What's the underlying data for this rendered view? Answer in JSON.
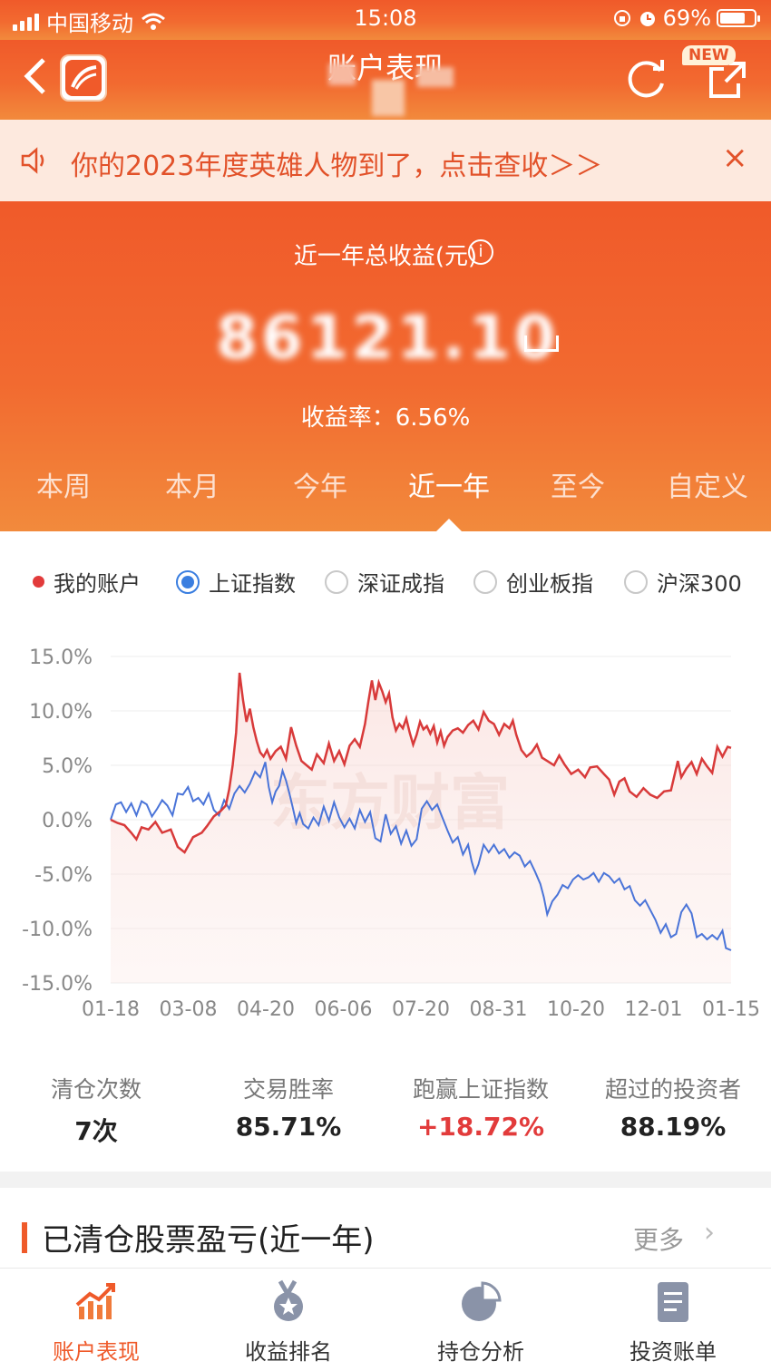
{
  "status_bar": {
    "carrier": "中国移动",
    "time": "15:08",
    "battery": "69%"
  },
  "nav": {
    "title": "账户表现",
    "new_badge": "NEW"
  },
  "notice": {
    "text": "你的2023年度英雄人物到了，点击查收＞＞",
    "close": "×"
  },
  "summary": {
    "label": "近一年总收益(元)",
    "value": "86121.10",
    "yield_label": "收益率：",
    "yield_value": "6.56%"
  },
  "tabs": [
    {
      "label": "本周",
      "active": false
    },
    {
      "label": "本月",
      "active": false
    },
    {
      "label": "今年",
      "active": false
    },
    {
      "label": "近一年",
      "active": true
    },
    {
      "label": "至今",
      "active": false
    },
    {
      "label": "自定义",
      "active": false
    }
  ],
  "legend": {
    "my_account": "我的账户",
    "options": [
      {
        "label": "上证指数",
        "selected": true
      },
      {
        "label": "深证成指",
        "selected": false
      },
      {
        "label": "创业板指",
        "selected": false
      },
      {
        "label": "沪深300",
        "selected": false
      }
    ]
  },
  "chart_data": {
    "type": "line",
    "ylim": [
      -15,
      15
    ],
    "y_ticks": [
      "15.0%",
      "10.0%",
      "5.0%",
      "0.0%",
      "-5.0%",
      "-10.0%",
      "-15.0%"
    ],
    "x_ticks": [
      "01-18",
      "03-08",
      "04-20",
      "06-06",
      "07-20",
      "08-31",
      "10-20",
      "12-01",
      "01-15"
    ],
    "watermark": "东方财富",
    "colors": {
      "account": "#d83a3a",
      "index": "#4a74d8"
    },
    "series": [
      {
        "name": "我的账户",
        "points": [
          [
            0,
            0
          ],
          [
            0.4,
            -0.3
          ],
          [
            0.8,
            -0.5
          ],
          [
            1.2,
            -1.2
          ],
          [
            1.5,
            -1.8
          ],
          [
            1.8,
            -0.7
          ],
          [
            2.2,
            -0.9
          ],
          [
            2.6,
            -0.2
          ],
          [
            3.0,
            -1.2
          ],
          [
            3.5,
            -0.9
          ],
          [
            3.9,
            -2.5
          ],
          [
            4.3,
            -3.0
          ],
          [
            4.8,
            -1.6
          ],
          [
            5.3,
            -1.2
          ],
          [
            5.6,
            -0.6
          ],
          [
            6.0,
            0.3
          ],
          [
            6.4,
            0.8
          ],
          [
            6.7,
            1.3
          ],
          [
            6.9,
            2.8
          ],
          [
            7.1,
            5.0
          ],
          [
            7.3,
            8.0
          ],
          [
            7.5,
            13.5
          ],
          [
            7.7,
            11.0
          ],
          [
            7.9,
            9.0
          ],
          [
            8.1,
            10.2
          ],
          [
            8.3,
            8.5
          ],
          [
            8.5,
            7.2
          ],
          [
            8.7,
            6.2
          ],
          [
            8.9,
            5.8
          ],
          [
            9.1,
            6.4
          ],
          [
            9.3,
            5.6
          ],
          [
            9.6,
            6.3
          ],
          [
            9.9,
            6.7
          ],
          [
            10.2,
            5.6
          ],
          [
            10.5,
            8.5
          ],
          [
            10.8,
            6.8
          ],
          [
            11.1,
            5.4
          ],
          [
            11.4,
            5.0
          ],
          [
            11.7,
            4.6
          ],
          [
            12.0,
            6.0
          ],
          [
            12.4,
            5.2
          ],
          [
            12.7,
            7.0
          ],
          [
            13.0,
            5.4
          ],
          [
            13.3,
            6.3
          ],
          [
            13.6,
            5.1
          ],
          [
            13.9,
            6.8
          ],
          [
            14.2,
            7.4
          ],
          [
            14.5,
            6.7
          ],
          [
            14.8,
            8.8
          ],
          [
            15.0,
            10.9
          ],
          [
            15.2,
            12.8
          ],
          [
            15.4,
            11.0
          ],
          [
            15.6,
            12.6
          ],
          [
            15.8,
            11.8
          ],
          [
            16.0,
            10.8
          ],
          [
            16.2,
            11.6
          ],
          [
            16.4,
            9.4
          ],
          [
            16.6,
            8.2
          ],
          [
            16.8,
            8.8
          ],
          [
            17.0,
            8.4
          ],
          [
            17.2,
            9.3
          ],
          [
            17.4,
            8.0
          ],
          [
            17.6,
            6.9
          ],
          [
            17.8,
            7.8
          ],
          [
            18.0,
            9.0
          ],
          [
            18.2,
            8.3
          ],
          [
            18.4,
            8.6
          ],
          [
            18.6,
            7.9
          ],
          [
            18.8,
            8.6
          ],
          [
            19.0,
            7.1
          ],
          [
            19.2,
            8.1
          ],
          [
            19.4,
            6.8
          ],
          [
            19.6,
            7.6
          ],
          [
            19.9,
            8.2
          ],
          [
            20.2,
            8.4
          ],
          [
            20.5,
            8.0
          ],
          [
            20.8,
            8.7
          ],
          [
            21.1,
            9.1
          ],
          [
            21.4,
            8.3
          ],
          [
            21.7,
            9.9
          ],
          [
            22.0,
            9.1
          ],
          [
            22.3,
            8.8
          ],
          [
            22.6,
            7.8
          ],
          [
            22.9,
            8.8
          ],
          [
            23.2,
            8.4
          ],
          [
            23.4,
            9.1
          ],
          [
            23.6,
            7.8
          ],
          [
            23.9,
            6.4
          ],
          [
            24.2,
            5.8
          ],
          [
            24.5,
            6.2
          ],
          [
            24.8,
            6.9
          ],
          [
            25.1,
            5.7
          ],
          [
            25.4,
            5.4
          ],
          [
            25.8,
            5.0
          ],
          [
            26.1,
            5.9
          ],
          [
            26.4,
            5.1
          ],
          [
            26.8,
            4.2
          ],
          [
            27.2,
            4.6
          ],
          [
            27.6,
            3.9
          ],
          [
            27.9,
            4.8
          ],
          [
            28.3,
            4.9
          ],
          [
            28.7,
            4.2
          ],
          [
            29.0,
            3.7
          ],
          [
            29.3,
            2.3
          ],
          [
            29.6,
            3.5
          ],
          [
            29.9,
            3.8
          ],
          [
            30.2,
            2.6
          ],
          [
            30.6,
            2.1
          ],
          [
            31.0,
            2.9
          ],
          [
            31.4,
            2.3
          ],
          [
            31.8,
            2.0
          ],
          [
            32.2,
            2.6
          ],
          [
            32.6,
            2.7
          ],
          [
            33.0,
            5.4
          ],
          [
            33.2,
            3.9
          ],
          [
            33.5,
            4.7
          ],
          [
            33.8,
            5.3
          ],
          [
            34.1,
            4.2
          ],
          [
            34.4,
            5.6
          ],
          [
            34.7,
            4.9
          ],
          [
            35.0,
            4.3
          ],
          [
            35.3,
            6.7
          ],
          [
            35.6,
            5.8
          ],
          [
            35.9,
            6.7
          ],
          [
            36.1,
            6.6
          ]
        ]
      },
      {
        "name": "上证指数",
        "points": [
          [
            0,
            0
          ],
          [
            0.3,
            1.4
          ],
          [
            0.6,
            1.6
          ],
          [
            0.9,
            0.7
          ],
          [
            1.2,
            1.5
          ],
          [
            1.5,
            0.4
          ],
          [
            1.8,
            1.7
          ],
          [
            2.1,
            1.4
          ],
          [
            2.4,
            0.3
          ],
          [
            2.7,
            1.0
          ],
          [
            3.0,
            1.8
          ],
          [
            3.3,
            1.3
          ],
          [
            3.6,
            0.4
          ],
          [
            3.9,
            2.4
          ],
          [
            4.2,
            2.3
          ],
          [
            4.5,
            3.0
          ],
          [
            4.8,
            1.7
          ],
          [
            5.1,
            2.0
          ],
          [
            5.4,
            1.4
          ],
          [
            5.7,
            2.4
          ],
          [
            6.0,
            0.9
          ],
          [
            6.3,
            0.4
          ],
          [
            6.6,
            1.8
          ],
          [
            6.9,
            1.0
          ],
          [
            7.2,
            2.4
          ],
          [
            7.5,
            3.1
          ],
          [
            7.8,
            2.5
          ],
          [
            8.1,
            3.3
          ],
          [
            8.4,
            4.4
          ],
          [
            8.7,
            3.9
          ],
          [
            9.0,
            5.3
          ],
          [
            9.2,
            3.0
          ],
          [
            9.4,
            1.6
          ],
          [
            9.6,
            2.6
          ],
          [
            9.8,
            3.1
          ],
          [
            10.0,
            4.5
          ],
          [
            10.2,
            3.6
          ],
          [
            10.4,
            2.4
          ],
          [
            10.6,
            1.1
          ],
          [
            10.8,
            -0.3
          ],
          [
            11.0,
            0.6
          ],
          [
            11.2,
            -0.4
          ],
          [
            11.5,
            -0.8
          ],
          [
            11.8,
            0.2
          ],
          [
            12.1,
            -0.5
          ],
          [
            12.4,
            1.2
          ],
          [
            12.7,
            -0.1
          ],
          [
            13.0,
            1.6
          ],
          [
            13.3,
            0.2
          ],
          [
            13.6,
            -0.7
          ],
          [
            13.9,
            0.1
          ],
          [
            14.2,
            -0.8
          ],
          [
            14.5,
            0.9
          ],
          [
            14.8,
            -0.2
          ],
          [
            15.1,
            0.7
          ],
          [
            15.4,
            -1.7
          ],
          [
            15.7,
            -2.0
          ],
          [
            16.0,
            0.5
          ],
          [
            16.3,
            -1.3
          ],
          [
            16.6,
            -0.6
          ],
          [
            16.9,
            -2.2
          ],
          [
            17.2,
            -1.0
          ],
          [
            17.5,
            -2.4
          ],
          [
            17.8,
            -1.8
          ],
          [
            18.1,
            1.0
          ],
          [
            18.4,
            1.7
          ],
          [
            18.7,
            0.9
          ],
          [
            19.0,
            1.4
          ],
          [
            19.3,
            0.2
          ],
          [
            19.6,
            -1.0
          ],
          [
            19.9,
            -2.1
          ],
          [
            20.2,
            -1.6
          ],
          [
            20.5,
            -3.2
          ],
          [
            20.8,
            -2.3
          ],
          [
            21.0,
            -3.8
          ],
          [
            21.2,
            -4.9
          ],
          [
            21.4,
            -4.1
          ],
          [
            21.7,
            -2.3
          ],
          [
            22.0,
            -3.0
          ],
          [
            22.3,
            -2.3
          ],
          [
            22.6,
            -3.1
          ],
          [
            22.9,
            -2.7
          ],
          [
            23.2,
            -3.5
          ],
          [
            23.5,
            -3.0
          ],
          [
            23.8,
            -3.3
          ],
          [
            24.1,
            -4.3
          ],
          [
            24.4,
            -3.8
          ],
          [
            24.7,
            -4.8
          ],
          [
            25.0,
            -5.9
          ],
          [
            25.2,
            -7.1
          ],
          [
            25.4,
            -8.7
          ],
          [
            25.7,
            -7.5
          ],
          [
            26.0,
            -6.9
          ],
          [
            26.3,
            -6.0
          ],
          [
            26.6,
            -6.3
          ],
          [
            26.9,
            -5.5
          ],
          [
            27.2,
            -5.1
          ],
          [
            27.5,
            -5.5
          ],
          [
            27.8,
            -5.3
          ],
          [
            28.1,
            -4.9
          ],
          [
            28.4,
            -5.7
          ],
          [
            28.7,
            -4.9
          ],
          [
            29.0,
            -5.2
          ],
          [
            29.3,
            -5.8
          ],
          [
            29.6,
            -5.4
          ],
          [
            29.9,
            -6.4
          ],
          [
            30.2,
            -6.1
          ],
          [
            30.5,
            -7.4
          ],
          [
            30.8,
            -7.9
          ],
          [
            31.1,
            -7.4
          ],
          [
            31.4,
            -8.3
          ],
          [
            31.7,
            -9.2
          ],
          [
            32.0,
            -10.4
          ],
          [
            32.3,
            -9.6
          ],
          [
            32.6,
            -10.8
          ],
          [
            32.9,
            -10.5
          ],
          [
            33.2,
            -8.5
          ],
          [
            33.5,
            -7.8
          ],
          [
            33.8,
            -8.6
          ],
          [
            34.1,
            -10.8
          ],
          [
            34.4,
            -10.5
          ],
          [
            34.7,
            -11.0
          ],
          [
            35.0,
            -10.6
          ],
          [
            35.3,
            -11.0
          ],
          [
            35.6,
            -10.2
          ],
          [
            35.8,
            -11.8
          ],
          [
            36.1,
            -12.0
          ]
        ]
      }
    ]
  },
  "stats": [
    {
      "label": "清仓次数",
      "value": "7次",
      "tone": "normal"
    },
    {
      "label": "交易胜率",
      "value": "85.71%",
      "tone": "normal"
    },
    {
      "label": "跑赢上证指数",
      "value": "+18.72%",
      "tone": "up"
    },
    {
      "label": "超过的投资者",
      "value": "88.19%",
      "tone": "normal"
    }
  ],
  "section": {
    "title": "已清仓股票盈亏(近一年)",
    "more": "更多",
    "chevron": "›"
  },
  "bottom_nav": [
    {
      "label": "账户表现",
      "icon": "performance-chart-icon",
      "active": true
    },
    {
      "label": "收益排名",
      "icon": "medal-icon",
      "active": false
    },
    {
      "label": "持仓分析",
      "icon": "pie-chart-icon",
      "active": false
    },
    {
      "label": "投资账单",
      "icon": "bill-document-icon",
      "active": false
    }
  ]
}
